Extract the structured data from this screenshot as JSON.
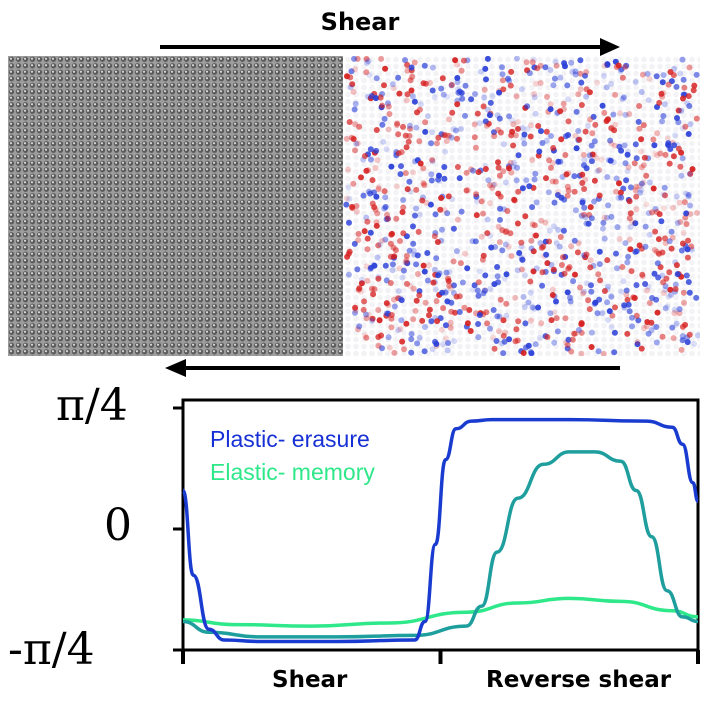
{
  "top": {
    "shear_label": "Shear"
  },
  "legend": {
    "plastic": {
      "label": "Plastic- erasure",
      "color": "#1630d6"
    },
    "elastic": {
      "label": "Elastic- memory",
      "color": "#2ee88a"
    }
  },
  "colors": {
    "axis": "#000000",
    "plastic_line": "#1a3bd0",
    "memory_line": "#1f9e9e",
    "elastic_line": "#2ee88a",
    "map_red": "#d62020",
    "map_blue": "#2a3fd8"
  },
  "chart_data": {
    "type": "line",
    "yticks": [
      "π/4",
      "0",
      "-π/4"
    ],
    "ylim": [
      -0.785,
      0.785
    ],
    "xlim": [
      0,
      1
    ],
    "xlabels": [
      "Shear",
      "Reverse shear"
    ],
    "series": [
      {
        "name": "Plastic- erasure",
        "color": "#1a3bd0",
        "x": [
          0.0,
          0.02,
          0.05,
          0.08,
          0.15,
          0.3,
          0.45,
          0.47,
          0.49,
          0.51,
          0.53,
          0.56,
          0.6,
          0.75,
          0.9,
          0.95,
          0.97,
          0.99,
          1.0
        ],
        "y": [
          0.25,
          -0.3,
          -0.65,
          -0.72,
          -0.73,
          -0.73,
          -0.72,
          -0.6,
          -0.1,
          0.45,
          0.65,
          0.7,
          0.71,
          0.71,
          0.7,
          0.66,
          0.55,
          0.3,
          0.18
        ]
      },
      {
        "name": "Elastic- memory",
        "color": "#1f9e9e",
        "x": [
          0.0,
          0.05,
          0.15,
          0.3,
          0.45,
          0.55,
          0.58,
          0.61,
          0.65,
          0.7,
          0.75,
          0.8,
          0.85,
          0.88,
          0.91,
          0.94,
          0.97,
          1.0
        ],
        "y": [
          -0.6,
          -0.67,
          -0.7,
          -0.7,
          -0.69,
          -0.63,
          -0.5,
          -0.15,
          0.2,
          0.42,
          0.5,
          0.5,
          0.44,
          0.25,
          -0.05,
          -0.4,
          -0.57,
          -0.6
        ]
      },
      {
        "name": "",
        "color": "#2ee88a",
        "x": [
          0.0,
          0.1,
          0.25,
          0.4,
          0.55,
          0.65,
          0.75,
          0.85,
          0.95,
          1.0
        ],
        "y": [
          -0.59,
          -0.62,
          -0.63,
          -0.61,
          -0.54,
          -0.48,
          -0.45,
          -0.47,
          -0.53,
          -0.57
        ]
      }
    ]
  }
}
